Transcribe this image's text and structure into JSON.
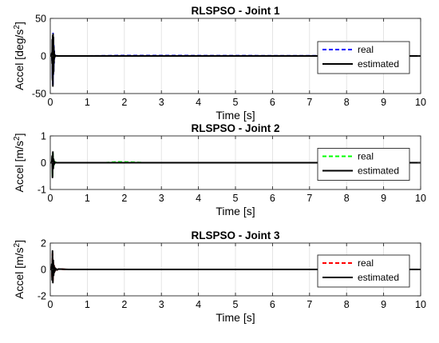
{
  "chart_data": [
    {
      "type": "line",
      "title": "RLSPSO - Joint 1",
      "xlabel": "Time [s]",
      "ylabel": "Accel [deg/s²]",
      "ylabel_base": "Accel [deg/s",
      "ylabel_sup": "2",
      "ylabel_end": "]",
      "xlim": [
        0,
        10
      ],
      "ylim": [
        -50,
        50
      ],
      "xticks": [
        0,
        1,
        2,
        3,
        4,
        5,
        6,
        7,
        8,
        9,
        10
      ],
      "xtick_labels": [
        "0",
        "1",
        "2",
        "3",
        "4",
        "5",
        "6",
        "7",
        "8",
        "9",
        "10"
      ],
      "yticks": [
        -50,
        0,
        50
      ],
      "ytick_labels": [
        "-50",
        "0",
        "50"
      ],
      "grid": "x",
      "legend_position": "right",
      "series": [
        {
          "name": "real",
          "color": "#0000ff",
          "dash": "dashed",
          "width": 2,
          "x": [
            0,
            0.03,
            0.04,
            0.05,
            0.055,
            0.06,
            0.065,
            0.07,
            0.075,
            0.08,
            0.085,
            0.09,
            0.095,
            0.1,
            0.105,
            0.11,
            0.12,
            0.13,
            0.15,
            0.2,
            0.3,
            1.0,
            2.0,
            10
          ],
          "y": [
            0,
            0,
            3,
            -8,
            20,
            -30,
            26,
            -38,
            30,
            -25,
            24,
            -20,
            14,
            -10,
            7,
            -4,
            2,
            -1,
            0.5,
            0,
            0,
            0,
            0.6,
            0
          ]
        },
        {
          "name": "estimated",
          "color": "#000000",
          "dash": "solid",
          "width": 2,
          "x": [
            0,
            0.03,
            0.04,
            0.05,
            0.055,
            0.06,
            0.065,
            0.07,
            0.075,
            0.08,
            0.085,
            0.09,
            0.095,
            0.1,
            0.105,
            0.11,
            0.12,
            0.13,
            0.15,
            0.2,
            0.3,
            1.0,
            10
          ],
          "y": [
            0,
            0,
            4,
            -10,
            22,
            -32,
            27,
            -40,
            29,
            -24,
            25,
            -21,
            12,
            -9,
            6,
            -3,
            1.5,
            -0.8,
            0.3,
            0,
            0,
            0,
            0
          ]
        }
      ]
    },
    {
      "type": "line",
      "title": "RLSPSO - Joint 2",
      "xlabel": "Time [s]",
      "ylabel": "Accel [m/s²]",
      "ylabel_base": "Accel [m/s",
      "ylabel_sup": "2",
      "ylabel_end": "]",
      "xlim": [
        0,
        10
      ],
      "ylim": [
        -1,
        1
      ],
      "xticks": [
        0,
        1,
        2,
        3,
        4,
        5,
        6,
        7,
        8,
        9,
        10
      ],
      "xtick_labels": [
        "0",
        "1",
        "2",
        "3",
        "4",
        "5",
        "6",
        "7",
        "8",
        "9",
        "10"
      ],
      "yticks": [
        -1,
        0,
        1
      ],
      "ytick_labels": [
        "-1",
        "0",
        "1"
      ],
      "grid": "x",
      "legend_position": "right",
      "series": [
        {
          "name": "real",
          "color": "#00ff00",
          "dash": "dashed",
          "width": 2,
          "x": [
            0,
            0.04,
            0.05,
            0.06,
            0.07,
            0.08,
            0.09,
            0.1,
            0.11,
            0.12,
            0.14,
            0.17,
            0.2,
            0.3,
            1.5,
            1.8,
            2.2,
            2.5,
            10
          ],
          "y": [
            0,
            0,
            0.2,
            -0.5,
            0.35,
            -0.2,
            0.12,
            -0.08,
            0.05,
            -0.03,
            0.02,
            0,
            0,
            0,
            0,
            0.03,
            0.02,
            0,
            0
          ]
        },
        {
          "name": "estimated",
          "color": "#000000",
          "dash": "solid",
          "width": 2,
          "x": [
            0,
            0.04,
            0.05,
            0.06,
            0.07,
            0.08,
            0.09,
            0.1,
            0.11,
            0.12,
            0.14,
            0.17,
            0.2,
            0.3,
            10
          ],
          "y": [
            0,
            0,
            0.25,
            -0.55,
            0.4,
            -0.22,
            0.13,
            -0.07,
            0.04,
            -0.02,
            0.01,
            0,
            0,
            0,
            0
          ]
        }
      ]
    },
    {
      "type": "line",
      "title": "RLSPSO - Joint 3",
      "xlabel": "Time [s]",
      "ylabel": "Accel [m/s²]",
      "ylabel_base": "Accel [m/s",
      "ylabel_sup": "2",
      "ylabel_end": "]",
      "xlim": [
        0,
        10
      ],
      "ylim": [
        -2,
        2
      ],
      "xticks": [
        0,
        1,
        2,
        3,
        4,
        5,
        6,
        7,
        8,
        9,
        10
      ],
      "xtick_labels": [
        "0",
        "1",
        "2",
        "3",
        "4",
        "5",
        "6",
        "7",
        "8",
        "9",
        "10"
      ],
      "yticks": [
        -2,
        0,
        2
      ],
      "ytick_labels": [
        "-2",
        "0",
        "2"
      ],
      "grid": "x",
      "legend_position": "right",
      "series": [
        {
          "name": "real",
          "color": "#ff0000",
          "dash": "dashed",
          "width": 2,
          "x": [
            0,
            0.03,
            0.04,
            0.05,
            0.06,
            0.07,
            0.08,
            0.09,
            0.1,
            0.11,
            0.12,
            0.13,
            0.15,
            0.18,
            0.22,
            0.3,
            0.4,
            0.5,
            10
          ],
          "y": [
            0,
            0,
            0.3,
            -0.6,
            1.2,
            -0.9,
            0.6,
            -0.4,
            0.3,
            -0.2,
            0.15,
            -0.1,
            0.07,
            -0.04,
            0.03,
            0.02,
            0.01,
            0,
            0
          ]
        },
        {
          "name": "estimated",
          "color": "#000000",
          "dash": "solid",
          "width": 2,
          "x": [
            0,
            0.03,
            0.04,
            0.05,
            0.06,
            0.07,
            0.08,
            0.09,
            0.1,
            0.11,
            0.12,
            0.13,
            0.15,
            0.18,
            0.22,
            0.3,
            0.4,
            0.5,
            10
          ],
          "y": [
            0,
            0,
            0.4,
            -0.8,
            1.4,
            -1.0,
            0.7,
            -0.45,
            0.3,
            -0.22,
            0.15,
            -0.1,
            0.06,
            -0.04,
            0.03,
            0.02,
            0.01,
            0,
            0
          ]
        }
      ]
    }
  ]
}
